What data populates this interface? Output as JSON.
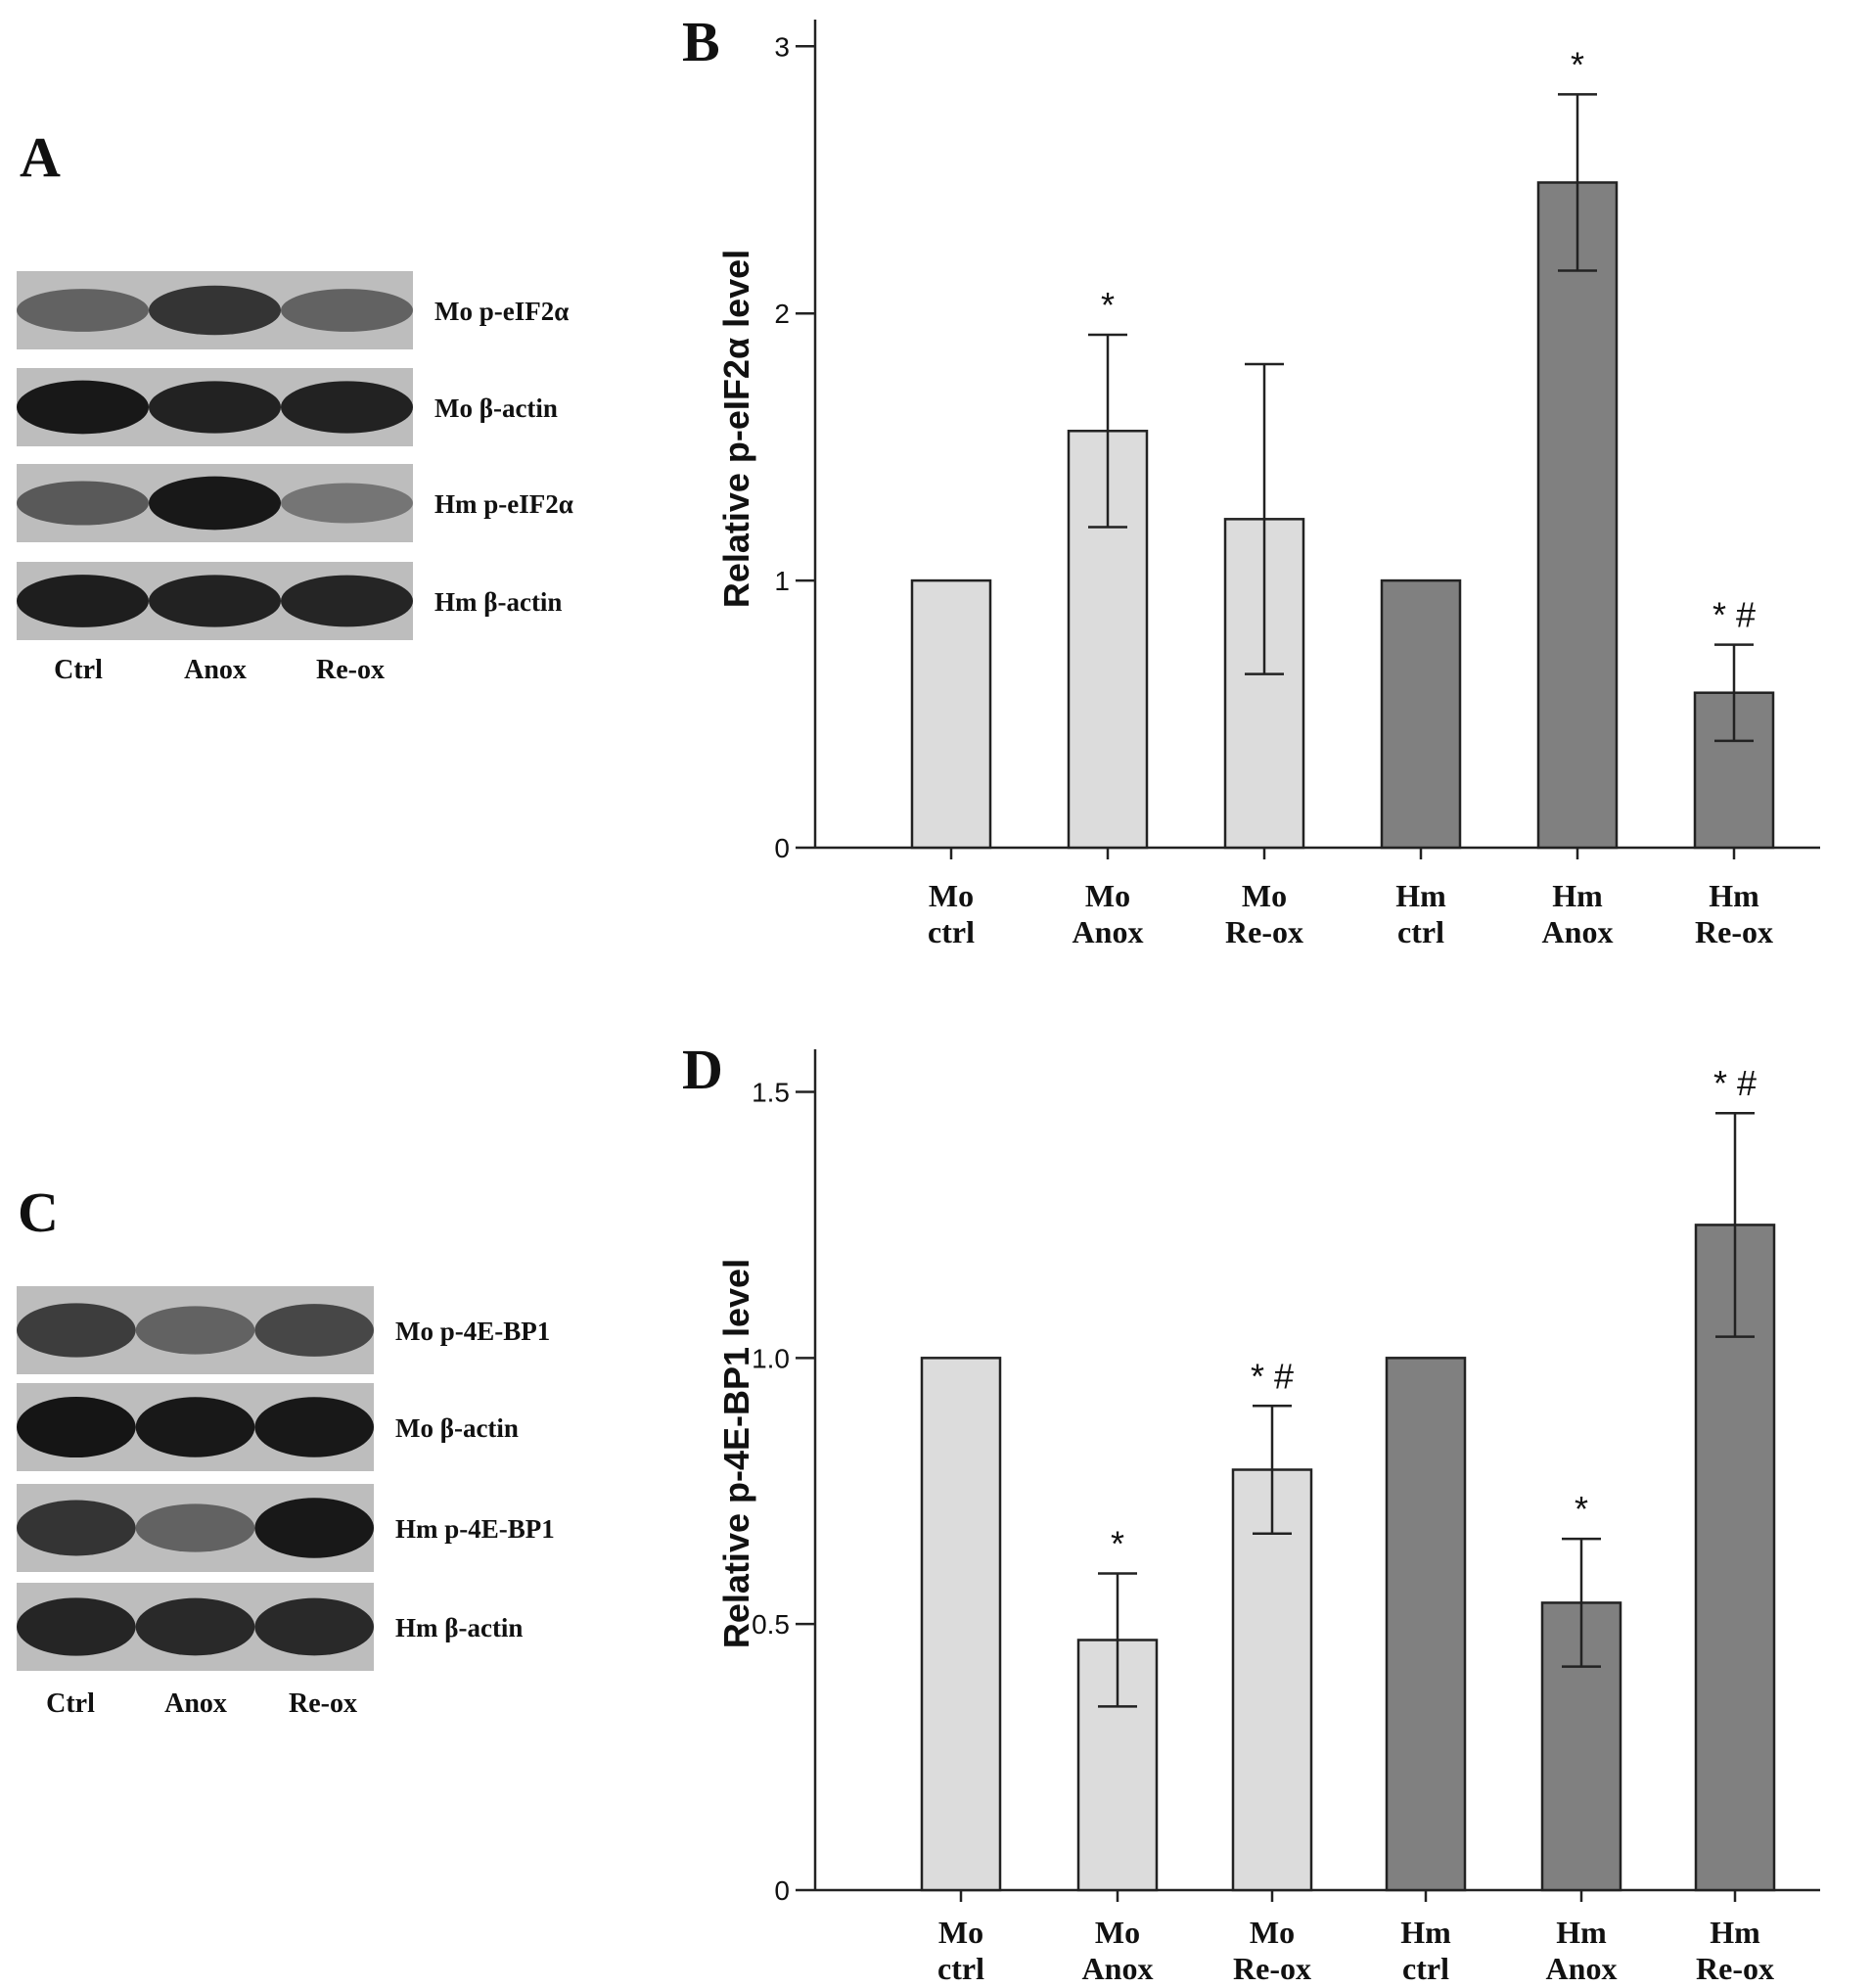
{
  "figure": {
    "panel_letters": [
      "A",
      "B",
      "C",
      "D"
    ],
    "blots": [
      {
        "panel": "A",
        "lanes": [
          "Ctrl",
          "Anox",
          "Re-ox"
        ],
        "rows": [
          {
            "label": "Mo p-eIF2α",
            "intensity": [
              0.55,
              0.8,
              0.55
            ]
          },
          {
            "label": "Mo β-actin",
            "intensity": [
              0.95,
              0.9,
              0.9
            ]
          },
          {
            "label": "Hm p-eIF2α",
            "intensity": [
              0.6,
              0.95,
              0.45
            ]
          },
          {
            "label": "Hm β-actin",
            "intensity": [
              0.92,
              0.9,
              0.88
            ]
          }
        ]
      },
      {
        "panel": "C",
        "lanes": [
          "Ctrl",
          "Anox",
          "Re-ox"
        ],
        "rows": [
          {
            "label": "Mo p-4E-BP1",
            "intensity": [
              0.75,
              0.55,
              0.7
            ]
          },
          {
            "label": "Mo β-actin",
            "intensity": [
              0.97,
              0.95,
              0.95
            ]
          },
          {
            "label": "Hm p-4E-BP1",
            "intensity": [
              0.8,
              0.55,
              0.95
            ]
          },
          {
            "label": "Hm β-actin",
            "intensity": [
              0.88,
              0.86,
              0.86
            ]
          }
        ]
      }
    ]
  },
  "colors": {
    "mo_bar": "#dcdcdc",
    "hm_bar": "#808080",
    "axis": "#222222"
  },
  "chart_data": [
    {
      "panel": "B",
      "type": "bar",
      "ylabel": "Relative p-eIF2α level",
      "ylim": [
        0,
        3.1
      ],
      "yticks": [
        0,
        1,
        2,
        3
      ],
      "ytick_labels": [
        "0",
        "1",
        "2",
        "3"
      ],
      "categories": [
        [
          "Mo",
          "ctrl"
        ],
        [
          "Mo",
          "Anox"
        ],
        [
          "Mo",
          "Re-ox"
        ],
        [
          "Hm",
          "ctrl"
        ],
        [
          "Hm",
          "Anox"
        ],
        [
          "Hm",
          "Re-ox"
        ]
      ],
      "values": [
        1.0,
        1.56,
        1.23,
        1.0,
        2.49,
        0.58
      ],
      "errors": [
        0.0,
        0.36,
        0.58,
        0.0,
        0.33,
        0.18
      ],
      "groups": [
        "Mo",
        "Mo",
        "Mo",
        "Hm",
        "Hm",
        "Hm"
      ],
      "annotations": [
        "",
        "*",
        "",
        "",
        "*",
        "* #"
      ],
      "grid": false
    },
    {
      "panel": "D",
      "type": "bar",
      "ylabel": "Relative p-4E-BP1 level",
      "ylim": [
        0,
        1.58
      ],
      "yticks": [
        0,
        0.5,
        1.0,
        1.5
      ],
      "ytick_labels": [
        "0",
        "0.5",
        "1.0",
        "1.5"
      ],
      "categories": [
        [
          "Mo",
          "ctrl"
        ],
        [
          "Mo",
          "Anox"
        ],
        [
          "Mo",
          "Re-ox"
        ],
        [
          "Hm",
          "ctrl"
        ],
        [
          "Hm",
          "Anox"
        ],
        [
          "Hm",
          "Re-ox"
        ]
      ],
      "values": [
        1.0,
        0.47,
        0.79,
        1.0,
        0.54,
        1.25
      ],
      "errors": [
        0.0,
        0.125,
        0.12,
        0.0,
        0.12,
        0.21
      ],
      "groups": [
        "Mo",
        "Mo",
        "Mo",
        "Hm",
        "Hm",
        "Hm"
      ],
      "annotations": [
        "",
        "*",
        "* #",
        "",
        "*",
        "* #"
      ],
      "grid": false
    }
  ]
}
